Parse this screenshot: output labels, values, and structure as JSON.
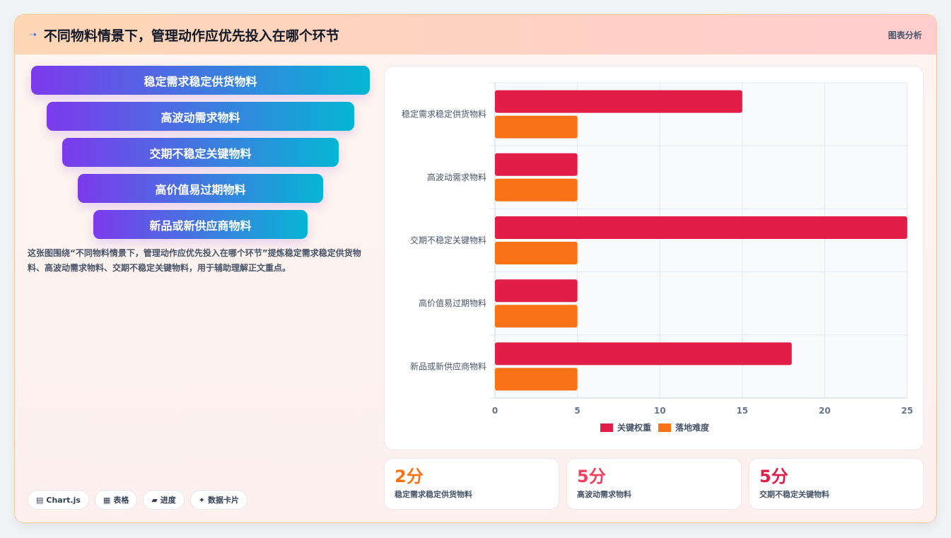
{
  "header": {
    "icon": "arrow-icon",
    "title": "不同物料情景下，管理动作应优先投入在哪个环节",
    "tag": "图表分析"
  },
  "funnel": [
    {
      "label": "稳定需求稳定供货物料"
    },
    {
      "label": "高波动需求物料"
    },
    {
      "label": "交期不稳定关键物料"
    },
    {
      "label": "高价值易过期物料"
    },
    {
      "label": "新品或新供应商物料"
    }
  ],
  "description": "这张图围绕“不同物料情景下，管理动作应优先投入在哪个环节”提炼稳定需求稳定供货物料、高波动需求物料、交期不稳定关键物料，用于辅助理解正文重点。",
  "chips": [
    {
      "icon": "▤",
      "label": "Chart.js"
    },
    {
      "icon": "▦",
      "label": "表格"
    },
    {
      "icon": "▰",
      "label": "进度"
    },
    {
      "icon": "✦",
      "label": "数据卡片"
    }
  ],
  "chart_data": {
    "type": "bar",
    "orientation": "horizontal",
    "categories": [
      "稳定需求稳定供货物料",
      "高波动需求物料",
      "交期不稳定关键物料",
      "高价值易过期物料",
      "新品或新供应商物料"
    ],
    "series": [
      {
        "name": "关键权重",
        "values": [
          15,
          5,
          25,
          5,
          18
        ],
        "color": "#e11d48"
      },
      {
        "name": "落地难度",
        "values": [
          5,
          5,
          5,
          5,
          5
        ],
        "color": "#f97316"
      }
    ],
    "xlim": [
      0,
      25
    ],
    "xticks": [
      0,
      5,
      10,
      15,
      20,
      25
    ],
    "grid": true,
    "legend": "bottom"
  },
  "stats": [
    {
      "value": "2分",
      "label": "稳定需求稳定供货物料",
      "color": "#f97316"
    },
    {
      "value": "5分",
      "label": "高波动需求物料",
      "color": "#f43f5e"
    },
    {
      "value": "5分",
      "label": "交期不稳定关键物料",
      "color": "#e11d48"
    }
  ]
}
